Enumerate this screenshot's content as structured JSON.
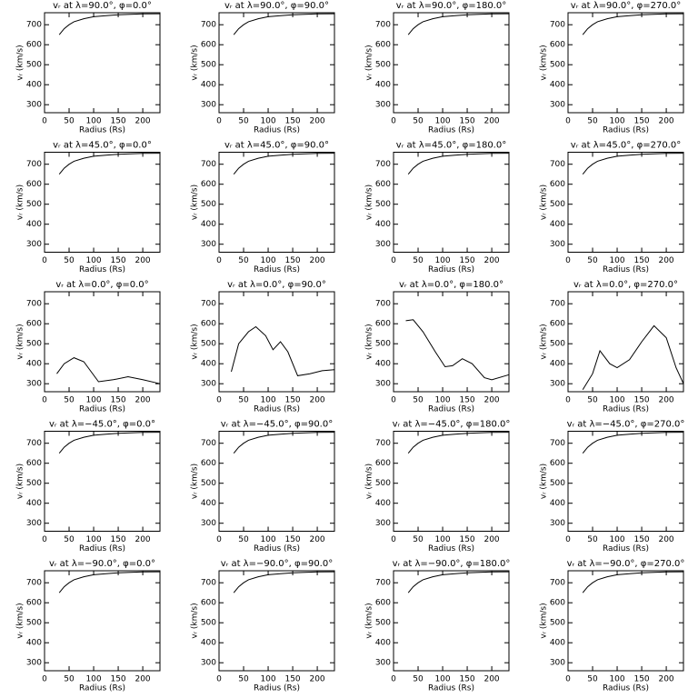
{
  "chart_data": [
    {
      "type": "line",
      "title": "vᵣ at λ=90.0°, φ=0.0°",
      "xlabel": "Radius (Rs)",
      "ylabel": "vᵣ (km/s)",
      "x": [
        30,
        40,
        50,
        60,
        80,
        100,
        125,
        150,
        175,
        200,
        235
      ],
      "values": [
        650,
        680,
        700,
        715,
        730,
        740,
        745,
        750,
        752,
        754,
        755
      ],
      "xlim": [
        0,
        235
      ],
      "ylim": [
        260,
        760
      ],
      "xticks": [
        0,
        50,
        100,
        150,
        200
      ],
      "yticks": [
        300,
        400,
        500,
        600,
        700
      ],
      "color": "#000000"
    },
    {
      "type": "line",
      "title": "vᵣ at λ=90.0°, φ=90.0°",
      "xlabel": "Radius (Rs)",
      "ylabel": "vᵣ (km/s)",
      "x": [
        30,
        40,
        50,
        60,
        80,
        100,
        125,
        150,
        175,
        200,
        235
      ],
      "values": [
        650,
        680,
        700,
        715,
        730,
        740,
        745,
        750,
        752,
        754,
        755
      ],
      "xlim": [
        0,
        235
      ],
      "ylim": [
        260,
        760
      ],
      "xticks": [
        0,
        50,
        100,
        150,
        200
      ],
      "yticks": [
        300,
        400,
        500,
        600,
        700
      ],
      "color": "#000000"
    },
    {
      "type": "line",
      "title": "vᵣ at λ=90.0°, φ=180.0°",
      "xlabel": "Radius (Rs)",
      "ylabel": "vᵣ (km/s)",
      "x": [
        30,
        40,
        50,
        60,
        80,
        100,
        125,
        150,
        175,
        200,
        235
      ],
      "values": [
        650,
        680,
        700,
        715,
        730,
        740,
        745,
        750,
        752,
        754,
        755
      ],
      "xlim": [
        0,
        235
      ],
      "ylim": [
        260,
        760
      ],
      "xticks": [
        0,
        50,
        100,
        150,
        200
      ],
      "yticks": [
        300,
        400,
        500,
        600,
        700
      ],
      "color": "#000000"
    },
    {
      "type": "line",
      "title": "vᵣ at λ=90.0°, φ=270.0°",
      "xlabel": "Radius (Rs)",
      "ylabel": "vᵣ (km/s)",
      "x": [
        30,
        40,
        50,
        60,
        80,
        100,
        125,
        150,
        175,
        200,
        235
      ],
      "values": [
        650,
        680,
        700,
        715,
        730,
        740,
        745,
        750,
        752,
        754,
        755
      ],
      "xlim": [
        0,
        235
      ],
      "ylim": [
        260,
        760
      ],
      "xticks": [
        0,
        50,
        100,
        150,
        200
      ],
      "yticks": [
        300,
        400,
        500,
        600,
        700
      ],
      "color": "#000000"
    },
    {
      "type": "line",
      "title": "vᵣ at λ=45.0°, φ=0.0°",
      "xlabel": "Radius (Rs)",
      "ylabel": "vᵣ (km/s)",
      "x": [
        30,
        40,
        50,
        60,
        80,
        100,
        125,
        150,
        175,
        200,
        235
      ],
      "values": [
        650,
        680,
        700,
        715,
        730,
        740,
        745,
        750,
        752,
        754,
        755
      ],
      "xlim": [
        0,
        235
      ],
      "ylim": [
        260,
        760
      ],
      "xticks": [
        0,
        50,
        100,
        150,
        200
      ],
      "yticks": [
        300,
        400,
        500,
        600,
        700
      ],
      "color": "#000000"
    },
    {
      "type": "line",
      "title": "vᵣ at λ=45.0°, φ=90.0°",
      "xlabel": "Radius (Rs)",
      "ylabel": "vᵣ (km/s)",
      "x": [
        30,
        40,
        50,
        60,
        80,
        100,
        125,
        150,
        175,
        200,
        235
      ],
      "values": [
        650,
        680,
        700,
        715,
        730,
        740,
        745,
        750,
        752,
        754,
        755
      ],
      "xlim": [
        0,
        235
      ],
      "ylim": [
        260,
        760
      ],
      "xticks": [
        0,
        50,
        100,
        150,
        200
      ],
      "yticks": [
        300,
        400,
        500,
        600,
        700
      ],
      "color": "#000000"
    },
    {
      "type": "line",
      "title": "vᵣ at λ=45.0°, φ=180.0°",
      "xlabel": "Radius (Rs)",
      "ylabel": "vᵣ (km/s)",
      "x": [
        30,
        40,
        50,
        60,
        80,
        100,
        125,
        150,
        175,
        200,
        235
      ],
      "values": [
        650,
        680,
        700,
        715,
        730,
        740,
        745,
        750,
        752,
        754,
        755
      ],
      "xlim": [
        0,
        235
      ],
      "ylim": [
        260,
        760
      ],
      "xticks": [
        0,
        50,
        100,
        150,
        200
      ],
      "yticks": [
        300,
        400,
        500,
        600,
        700
      ],
      "color": "#000000"
    },
    {
      "type": "line",
      "title": "vᵣ at λ=45.0°, φ=270.0°",
      "xlabel": "Radius (Rs)",
      "ylabel": "vᵣ (km/s)",
      "x": [
        30,
        40,
        50,
        60,
        80,
        100,
        125,
        150,
        175,
        200,
        235
      ],
      "values": [
        650,
        680,
        700,
        715,
        730,
        740,
        745,
        750,
        752,
        754,
        755
      ],
      "xlim": [
        0,
        235
      ],
      "ylim": [
        260,
        760
      ],
      "xticks": [
        0,
        50,
        100,
        150,
        200
      ],
      "yticks": [
        300,
        400,
        500,
        600,
        700
      ],
      "color": "#000000"
    },
    {
      "type": "line",
      "title": "vᵣ at λ=0.0°, φ=0.0°",
      "xlabel": "Radius (Rs)",
      "ylabel": "vᵣ (km/s)",
      "x": [
        25,
        40,
        60,
        80,
        110,
        140,
        170,
        200,
        235
      ],
      "values": [
        350,
        400,
        430,
        410,
        310,
        320,
        335,
        320,
        300
      ],
      "xlim": [
        0,
        235
      ],
      "ylim": [
        260,
        760
      ],
      "xticks": [
        0,
        50,
        100,
        150,
        200
      ],
      "yticks": [
        300,
        400,
        500,
        600,
        700
      ],
      "color": "#000000"
    },
    {
      "type": "line",
      "title": "vᵣ at λ=0.0°, φ=90.0°",
      "xlabel": "Radius (Rs)",
      "ylabel": "vᵣ (km/s)",
      "x": [
        25,
        40,
        60,
        75,
        95,
        110,
        125,
        140,
        160,
        185,
        210,
        235
      ],
      "values": [
        360,
        500,
        560,
        585,
        540,
        470,
        510,
        460,
        340,
        350,
        365,
        370
      ],
      "xlim": [
        0,
        235
      ],
      "ylim": [
        260,
        760
      ],
      "xticks": [
        0,
        50,
        100,
        150,
        200
      ],
      "yticks": [
        300,
        400,
        500,
        600,
        700
      ],
      "color": "#000000"
    },
    {
      "type": "line",
      "title": "vᵣ at λ=0.0°, φ=180.0°",
      "xlabel": "Radius (Rs)",
      "ylabel": "vᵣ (km/s)",
      "x": [
        25,
        40,
        60,
        85,
        105,
        120,
        140,
        160,
        185,
        200,
        235
      ],
      "values": [
        615,
        620,
        560,
        460,
        385,
        390,
        425,
        400,
        330,
        320,
        345
      ],
      "xlim": [
        0,
        235
      ],
      "ylim": [
        260,
        760
      ],
      "xticks": [
        0,
        50,
        100,
        150,
        200
      ],
      "yticks": [
        300,
        400,
        500,
        600,
        700
      ],
      "color": "#000000"
    },
    {
      "type": "line",
      "title": "vᵣ at λ=0.0°, φ=270.0°",
      "xlabel": "Radius (Rs)",
      "ylabel": "vᵣ (km/s)",
      "x": [
        30,
        50,
        65,
        85,
        100,
        125,
        150,
        175,
        200,
        220,
        235
      ],
      "values": [
        270,
        350,
        465,
        400,
        380,
        420,
        510,
        590,
        530,
        380,
        300
      ],
      "xlim": [
        0,
        235
      ],
      "ylim": [
        260,
        760
      ],
      "xticks": [
        0,
        50,
        100,
        150,
        200
      ],
      "yticks": [
        300,
        400,
        500,
        600,
        700
      ],
      "color": "#000000"
    },
    {
      "type": "line",
      "title": "vᵣ at λ=−45.0°, φ=0.0°",
      "xlabel": "Radius (Rs)",
      "ylabel": "vᵣ (km/s)",
      "x": [
        30,
        40,
        50,
        60,
        80,
        100,
        125,
        150,
        175,
        200,
        235
      ],
      "values": [
        650,
        680,
        700,
        715,
        730,
        740,
        745,
        750,
        752,
        754,
        755
      ],
      "xlim": [
        0,
        235
      ],
      "ylim": [
        260,
        760
      ],
      "xticks": [
        0,
        50,
        100,
        150,
        200
      ],
      "yticks": [
        300,
        400,
        500,
        600,
        700
      ],
      "color": "#000000"
    },
    {
      "type": "line",
      "title": "vᵣ at λ=−45.0°, φ=90.0°",
      "xlabel": "Radius (Rs)",
      "ylabel": "vᵣ (km/s)",
      "x": [
        30,
        40,
        50,
        60,
        80,
        100,
        125,
        150,
        175,
        200,
        235
      ],
      "values": [
        650,
        680,
        700,
        715,
        730,
        740,
        745,
        750,
        752,
        754,
        755
      ],
      "xlim": [
        0,
        235
      ],
      "ylim": [
        260,
        760
      ],
      "xticks": [
        0,
        50,
        100,
        150,
        200
      ],
      "yticks": [
        300,
        400,
        500,
        600,
        700
      ],
      "color": "#000000"
    },
    {
      "type": "line",
      "title": "vᵣ at λ=−45.0°, φ=180.0°",
      "xlabel": "Radius (Rs)",
      "ylabel": "vᵣ (km/s)",
      "x": [
        30,
        40,
        50,
        60,
        80,
        100,
        125,
        150,
        175,
        200,
        235
      ],
      "values": [
        650,
        680,
        700,
        715,
        730,
        740,
        745,
        750,
        752,
        754,
        755
      ],
      "xlim": [
        0,
        235
      ],
      "ylim": [
        260,
        760
      ],
      "xticks": [
        0,
        50,
        100,
        150,
        200
      ],
      "yticks": [
        300,
        400,
        500,
        600,
        700
      ],
      "color": "#000000"
    },
    {
      "type": "line",
      "title": "vᵣ at λ=−45.0°, φ=270.0°",
      "xlabel": "Radius (Rs)",
      "ylabel": "vᵣ (km/s)",
      "x": [
        30,
        40,
        50,
        60,
        80,
        100,
        125,
        150,
        175,
        200,
        235
      ],
      "values": [
        650,
        680,
        700,
        715,
        730,
        740,
        745,
        750,
        752,
        754,
        755
      ],
      "xlim": [
        0,
        235
      ],
      "ylim": [
        260,
        760
      ],
      "xticks": [
        0,
        50,
        100,
        150,
        200
      ],
      "yticks": [
        300,
        400,
        500,
        600,
        700
      ],
      "color": "#000000"
    },
    {
      "type": "line",
      "title": "vᵣ at λ=−90.0°, φ=0.0°",
      "xlabel": "Radius (Rs)",
      "ylabel": "vᵣ (km/s)",
      "x": [
        30,
        40,
        50,
        60,
        80,
        100,
        125,
        150,
        175,
        200,
        235
      ],
      "values": [
        650,
        680,
        700,
        715,
        730,
        740,
        745,
        750,
        752,
        754,
        755
      ],
      "xlim": [
        0,
        235
      ],
      "ylim": [
        260,
        760
      ],
      "xticks": [
        0,
        50,
        100,
        150,
        200
      ],
      "yticks": [
        300,
        400,
        500,
        600,
        700
      ],
      "color": "#000000"
    },
    {
      "type": "line",
      "title": "vᵣ at λ=−90.0°, φ=90.0°",
      "xlabel": "Radius (Rs)",
      "ylabel": "vᵣ (km/s)",
      "x": [
        30,
        40,
        50,
        60,
        80,
        100,
        125,
        150,
        175,
        200,
        235
      ],
      "values": [
        650,
        680,
        700,
        715,
        730,
        740,
        745,
        750,
        752,
        754,
        755
      ],
      "xlim": [
        0,
        235
      ],
      "ylim": [
        260,
        760
      ],
      "xticks": [
        0,
        50,
        100,
        150,
        200
      ],
      "yticks": [
        300,
        400,
        500,
        600,
        700
      ],
      "color": "#000000"
    },
    {
      "type": "line",
      "title": "vᵣ at λ=−90.0°, φ=180.0°",
      "xlabel": "Radius (Rs)",
      "ylabel": "vᵣ (km/s)",
      "x": [
        30,
        40,
        50,
        60,
        80,
        100,
        125,
        150,
        175,
        200,
        235
      ],
      "values": [
        650,
        680,
        700,
        715,
        730,
        740,
        745,
        750,
        752,
        754,
        755
      ],
      "xlim": [
        0,
        235
      ],
      "ylim": [
        260,
        760
      ],
      "xticks": [
        0,
        50,
        100,
        150,
        200
      ],
      "yticks": [
        300,
        400,
        500,
        600,
        700
      ],
      "color": "#000000"
    },
    {
      "type": "line",
      "title": "vᵣ at λ=−90.0°, φ=270.0°",
      "xlabel": "Radius (Rs)",
      "ylabel": "vᵣ (km/s)",
      "x": [
        30,
        40,
        50,
        60,
        80,
        100,
        125,
        150,
        175,
        200,
        235
      ],
      "values": [
        650,
        680,
        700,
        715,
        730,
        740,
        745,
        750,
        752,
        754,
        755
      ],
      "xlim": [
        0,
        235
      ],
      "ylim": [
        260,
        760
      ],
      "xticks": [
        0,
        50,
        100,
        150,
        200
      ],
      "yticks": [
        300,
        400,
        500,
        600,
        700
      ],
      "color": "#000000"
    }
  ]
}
